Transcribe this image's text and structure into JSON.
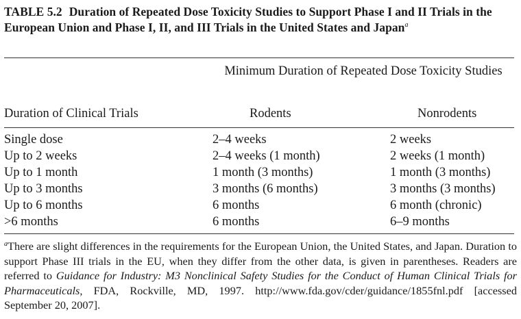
{
  "table": {
    "label": "TABLE 5.2",
    "title": "Duration of Repeated Dose Toxicity Studies to Support Phase I and II Trials in the European Union and Phase I, II, and III Trials in the United States and Japan",
    "title_note_marker": "a",
    "spanner_header": "Minimum Duration of Repeated Dose Toxicity Studies",
    "columns": [
      "Duration of Clinical Trials",
      "Rodents",
      "Nonrodents"
    ],
    "rows": [
      [
        "Single dose",
        "2–4 weeks",
        "2 weeks"
      ],
      [
        "Up to 2 weeks",
        "2–4 weeks (1 month)",
        "2 weeks (1 month)"
      ],
      [
        "Up to 1 month",
        "1 month (3 months)",
        "1 month (3 months)"
      ],
      [
        "Up to 3 months",
        "3 months (6 months)",
        "3 months (3 months)"
      ],
      [
        "Up to 6 months",
        "6 months",
        "6 month (chronic)"
      ],
      [
        ">6 months",
        "6 months",
        "6–9 months"
      ]
    ]
  },
  "footnote": {
    "marker": "a",
    "text_1": "There are slight differences in the requirements for the European Union, the United States, and Japan. Duration to support Phase III trials in the EU, when they differ from the other data, is given in parentheses. Readers are referred to ",
    "italic_title": "Guidance for Industry: M3 Nonclinical Safety Studies for the Conduct of Human Clinical Trials for Pharmaceuticals",
    "text_2": ", FDA, Rockville, MD, 1997. http://www.fda.gov/cder/guidance/1855fnl.pdf [accessed September 20, 2007]."
  }
}
